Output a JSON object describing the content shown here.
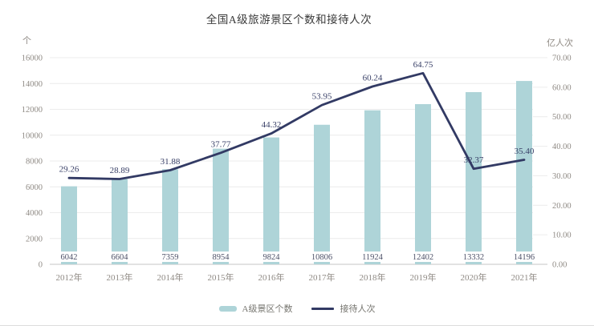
{
  "title": "全国A级旅游景区个数和接待人次",
  "chart_data": {
    "type": "combo-bar-line",
    "title": "全国A级旅游景区个数和接待人次",
    "categories": [
      "2012年",
      "2013年",
      "2014年",
      "2015年",
      "2016年",
      "2017年",
      "2018年",
      "2019年",
      "2020年",
      "2021年"
    ],
    "series": [
      {
        "name": "A级景区个数",
        "type": "bar",
        "axis": "left",
        "values": [
          6042,
          6604,
          7359,
          8954,
          9824,
          10806,
          11924,
          12402,
          13332,
          14196
        ],
        "value_labels": [
          "6042",
          "6604",
          "7359",
          "8954",
          "9824",
          "10806",
          "11924",
          "12402",
          "13332",
          "14196"
        ]
      },
      {
        "name": "接待人次",
        "type": "line",
        "axis": "right",
        "values": [
          29.26,
          28.89,
          31.88,
          37.77,
          44.32,
          53.95,
          60.24,
          64.75,
          32.37,
          35.4
        ],
        "value_labels": [
          "29.26",
          "28.89",
          "31.88",
          "37.77",
          "44.32",
          "53.95",
          "60.24",
          "64.75",
          "32.37",
          "35.40"
        ]
      }
    ],
    "left_axis": {
      "unit": "个",
      "min": 0,
      "max": 16000,
      "step": 2000,
      "tick_labels": [
        "0",
        "2000",
        "4000",
        "6000",
        "8000",
        "10000",
        "12000",
        "14000",
        "16000"
      ]
    },
    "right_axis": {
      "unit": "亿人次",
      "min": 0,
      "max": 70,
      "step": 10,
      "tick_labels": [
        "0.00",
        "10.00",
        "20.00",
        "30.00",
        "40.00",
        "50.00",
        "60.00",
        "70.00"
      ]
    },
    "grid": true,
    "legend_position": "bottom"
  },
  "colors": {
    "bar": "#aed4d8",
    "line": "#323a64",
    "grid": "#ececec",
    "axis_line": "#c6c6c6",
    "tick_text": "#8f8a84",
    "bar_label": "#4d5168",
    "line_label": "#3a4168",
    "title": "#3a3a3a",
    "legend_text": "#76756f",
    "bar_label_bg": "#ffffff"
  }
}
